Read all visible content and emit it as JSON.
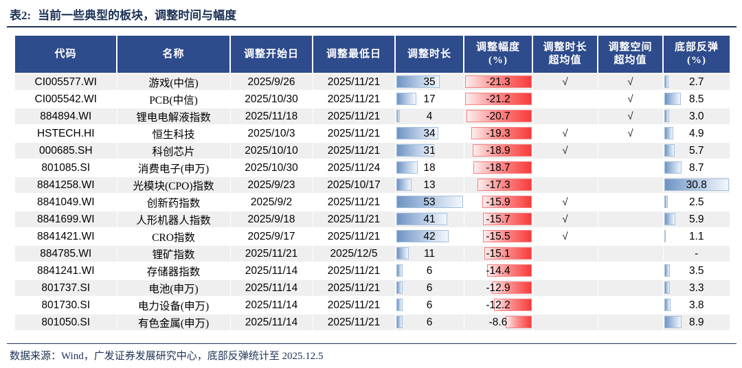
{
  "header": {
    "table_label": "表2:",
    "title": "当前一些典型的板块，调整时间与幅度"
  },
  "columns": [
    {
      "l1": "代码",
      "l2": ""
    },
    {
      "l1": "名称",
      "l2": ""
    },
    {
      "l1": "调整开始日",
      "l2": ""
    },
    {
      "l1": "调整最低日",
      "l2": ""
    },
    {
      "l1": "调整时长",
      "l2": ""
    },
    {
      "l1": "调整幅度",
      "l2": "(%)"
    },
    {
      "l1": "调整时长",
      "l2": "超均值"
    },
    {
      "l1": "调整空间",
      "l2": "超均值"
    },
    {
      "l1": "底部反弹",
      "l2": "(%)"
    }
  ],
  "footer": {
    "source": "数据来源：Wind，广发证券发展研究中心，底部反弹统计至 2025.12.5"
  },
  "colors": {
    "header_bg": "#2e4b8c",
    "title_navy": "#1c3156",
    "stripe_gray": "#efefef",
    "databar_blue": "#6f93c3",
    "databar_blue_border": "#a3c0dd",
    "databar_red": "#f83b3b",
    "databar_red_border": "#f87f7f"
  },
  "check_glyph": "√",
  "chart_data": {
    "type": "table",
    "title": "表2: 当前一些典型的板块，调整时间与幅度",
    "columns": [
      "代码",
      "名称",
      "调整开始日",
      "调整最低日",
      "调整时长",
      "调整幅度(%)",
      "调整时长超均值",
      "调整空间超均值",
      "底部反弹(%)"
    ],
    "databar_max": {
      "duration": 53,
      "drawdown_abs": 21.3,
      "rebound": 30.8
    },
    "layout_hints": {
      "duration_bar": "blue gradient, anchored left",
      "drawdown_bar": "red gradient, anchored right",
      "rebound_bar": "blue gradient, anchored left",
      "stripes": "odd rows gray"
    },
    "rows": [
      {
        "code": "CI005577.WI",
        "name": "游戏(中信)",
        "start": "2025/9/26",
        "low": "2025/11/21",
        "duration": 35,
        "drawdown": -21.3,
        "over_time": "√",
        "over_space": "√",
        "rebound": 2.7
      },
      {
        "code": "CI005542.WI",
        "name": "PCB(中信)",
        "start": "2025/10/30",
        "low": "2025/11/21",
        "duration": 17,
        "drawdown": -21.2,
        "over_time": "",
        "over_space": "√",
        "rebound": 8.5
      },
      {
        "code": "884894.WI",
        "name": "锂电电解液指数",
        "start": "2025/11/18",
        "low": "2025/11/21",
        "duration": 4,
        "drawdown": -20.7,
        "over_time": "",
        "over_space": "√",
        "rebound": 3.0
      },
      {
        "code": "HSTECH.HI",
        "name": "恒生科技",
        "start": "2025/10/3",
        "low": "2025/11/21",
        "duration": 34,
        "drawdown": -19.3,
        "over_time": "√",
        "over_space": "√",
        "rebound": 4.9
      },
      {
        "code": "000685.SH",
        "name": "科创芯片",
        "start": "2025/10/10",
        "low": "2025/11/21",
        "duration": 31,
        "drawdown": -18.9,
        "over_time": "√",
        "over_space": "",
        "rebound": 5.7
      },
      {
        "code": "801085.SI",
        "name": "消费电子(申万)",
        "start": "2025/10/30",
        "low": "2025/11/24",
        "duration": 18,
        "drawdown": -18.7,
        "over_time": "",
        "over_space": "",
        "rebound": 8.7
      },
      {
        "code": "8841258.WI",
        "name": "光模块(CPO)指数",
        "start": "2025/9/23",
        "low": "2025/10/17",
        "duration": 13,
        "drawdown": -17.3,
        "over_time": "",
        "over_space": "",
        "rebound": 30.8
      },
      {
        "code": "8841049.WI",
        "name": "创新药指数",
        "start": "2025/9/2",
        "low": "2025/11/21",
        "duration": 53,
        "drawdown": -15.9,
        "over_time": "√",
        "over_space": "",
        "rebound": 2.5
      },
      {
        "code": "8841699.WI",
        "name": "人形机器人指数",
        "start": "2025/9/18",
        "low": "2025/11/21",
        "duration": 41,
        "drawdown": -15.7,
        "over_time": "√",
        "over_space": "",
        "rebound": 5.9
      },
      {
        "code": "8841421.WI",
        "name": "CRO指数",
        "start": "2025/9/17",
        "low": "2025/11/21",
        "duration": 42,
        "drawdown": -15.5,
        "over_time": "√",
        "over_space": "",
        "rebound": 1.1
      },
      {
        "code": "884785.WI",
        "name": "锂矿指数",
        "start": "2025/11/21",
        "low": "2025/12/5",
        "duration": 11,
        "drawdown": -15.1,
        "over_time": "",
        "over_space": "",
        "rebound": "-"
      },
      {
        "code": "8841241.WI",
        "name": "存储器指数",
        "start": "2025/11/14",
        "low": "2025/11/21",
        "duration": 6,
        "drawdown": -14.4,
        "over_time": "",
        "over_space": "",
        "rebound": 3.5
      },
      {
        "code": "801737.SI",
        "name": "电池(申万)",
        "start": "2025/11/14",
        "low": "2025/11/21",
        "duration": 6,
        "drawdown": -12.9,
        "over_time": "",
        "over_space": "",
        "rebound": 3.3
      },
      {
        "code": "801730.SI",
        "name": "电力设备(申万)",
        "start": "2025/11/14",
        "low": "2025/11/21",
        "duration": 6,
        "drawdown": -12.2,
        "over_time": "",
        "over_space": "",
        "rebound": 3.8
      },
      {
        "code": "801050.SI",
        "name": "有色金属(申万)",
        "start": "2025/11/14",
        "low": "2025/11/21",
        "duration": 6,
        "drawdown": -8.6,
        "over_time": "",
        "over_space": "",
        "rebound": 8.9
      }
    ],
    "source": "数据来源：Wind，广发证券发展研究中心，底部反弹统计至 2025.12.5"
  }
}
